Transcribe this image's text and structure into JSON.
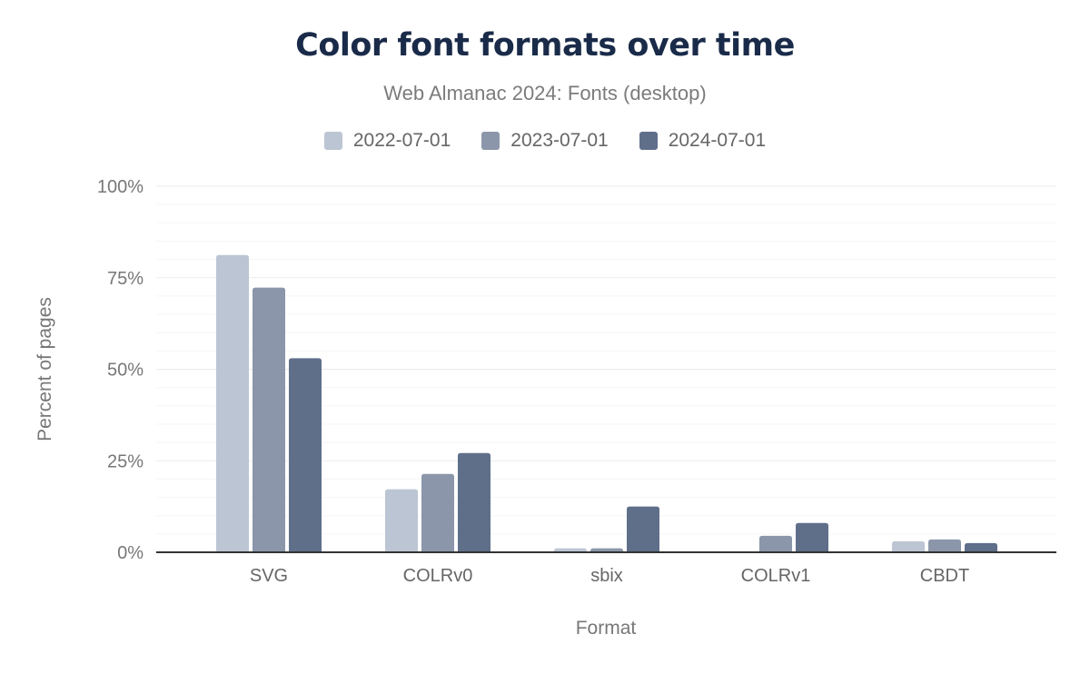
{
  "chart_data": {
    "type": "bar",
    "title": "Color font formats over time",
    "subtitle": "Web Almanac 2024: Fonts (desktop)",
    "xlabel": "Format",
    "ylabel": "Percent of pages",
    "categories": [
      "SVG",
      "COLRv0",
      "sbix",
      "COLRv1",
      "CBDT"
    ],
    "ylim": [
      0,
      100
    ],
    "yticks": [
      "0%",
      "25%",
      "50%",
      "75%",
      "100%"
    ],
    "grid": true,
    "legend_placement": "top",
    "series": [
      {
        "name": "2022-07-01",
        "color": "#bcc5d3",
        "values": [
          81.2,
          17.2,
          1.1,
          0,
          3.0
        ]
      },
      {
        "name": "2023-07-01",
        "color": "#8b96aa",
        "values": [
          72.3,
          21.4,
          1.1,
          4.5,
          3.5
        ]
      },
      {
        "name": "2024-07-01",
        "color": "#5f6f8a",
        "values": [
          53.0,
          27.1,
          12.5,
          8.0,
          2.5
        ]
      }
    ]
  }
}
